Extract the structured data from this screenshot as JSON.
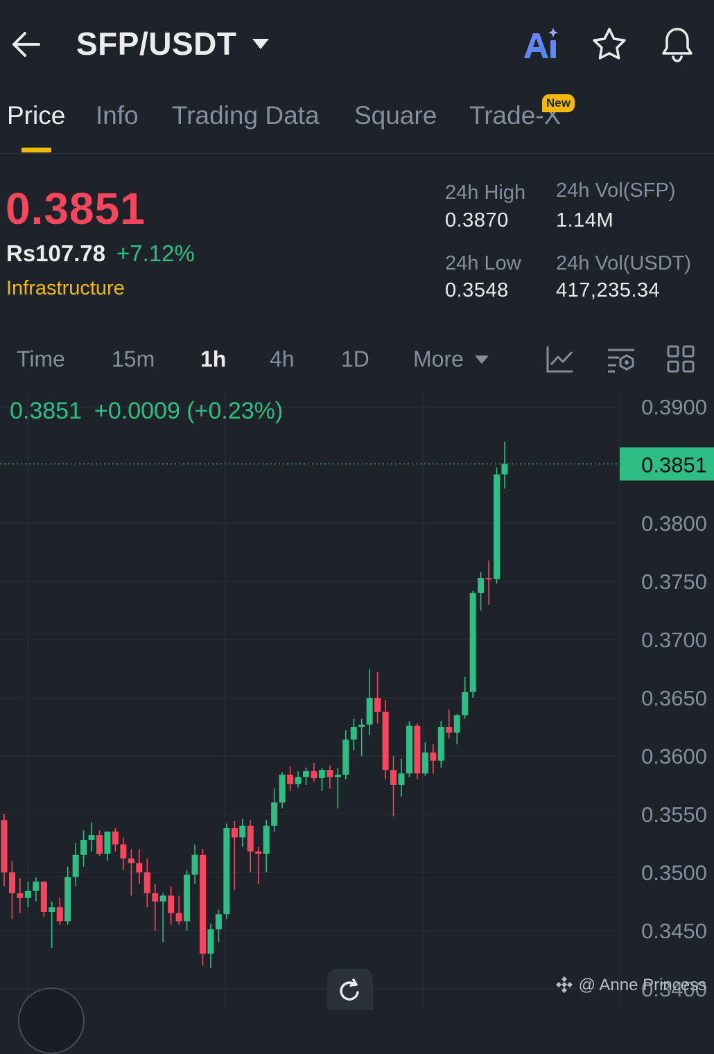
{
  "header": {
    "pair": "SFP/USDT",
    "ai_label": "Ai"
  },
  "tabs": [
    {
      "label": "Price",
      "active": true
    },
    {
      "label": "Info",
      "active": false
    },
    {
      "label": "Trading Data",
      "active": false
    },
    {
      "label": "Square",
      "active": false
    },
    {
      "label": "Trade-X",
      "active": false,
      "badge": "New"
    }
  ],
  "ticker": {
    "last_price": "0.3851",
    "fiat_price": "Rs107.78",
    "change_pct": "+7.12%",
    "sector": "Infrastructure",
    "stats": {
      "high_label": "24h High",
      "high_value": "0.3870",
      "low_label": "24h Low",
      "low_value": "0.3548",
      "vol_base_label": "24h Vol(SFP)",
      "vol_base_value": "1.14M",
      "vol_quote_label": "24h Vol(USDT)",
      "vol_quote_value": "417,235.34"
    }
  },
  "intervals": [
    {
      "label": "Time",
      "active": false
    },
    {
      "label": "15m",
      "active": false
    },
    {
      "label": "1h",
      "active": true
    },
    {
      "label": "4h",
      "active": false
    },
    {
      "label": "1D",
      "active": false
    },
    {
      "label": "More",
      "active": false
    }
  ],
  "chart_readout": {
    "close": "0.3851",
    "change": "+0.0009 (+0.23%)"
  },
  "watermark": "@ Anne Princess",
  "colors": {
    "background": "#1e2329",
    "up": "#2ebd85",
    "down": "#f6465d",
    "accent": "#f0b90b",
    "muted_text": "#848e9c"
  },
  "chart_data": {
    "type": "candlestick",
    "interval": "1h",
    "y_ticks": [
      0.39,
      0.38,
      0.375,
      0.37,
      0.365,
      0.36,
      0.355,
      0.35,
      0.345,
      0.34
    ],
    "y_tick_labels": [
      "0.3900",
      "0.3800",
      "0.3750",
      "0.3700",
      "0.3650",
      "0.3600",
      "0.3550",
      "0.3500",
      "0.3450",
      "0.3400"
    ],
    "ylim": [
      0.3385,
      0.3915
    ],
    "current_price": 0.3851,
    "current_price_label": "0.3851",
    "grid": true,
    "candles": [
      [
        0.3545,
        0.355,
        0.3488,
        0.35
      ],
      [
        0.35,
        0.351,
        0.346,
        0.3482
      ],
      [
        0.3482,
        0.3495,
        0.3465,
        0.3478
      ],
      [
        0.3478,
        0.3492,
        0.347,
        0.3484
      ],
      [
        0.3484,
        0.3496,
        0.3475,
        0.3492
      ],
      [
        0.3492,
        0.3492,
        0.3462,
        0.3466
      ],
      [
        0.3466,
        0.3475,
        0.3435,
        0.347
      ],
      [
        0.347,
        0.3478,
        0.3455,
        0.3458
      ],
      [
        0.3458,
        0.3505,
        0.3455,
        0.3496
      ],
      [
        0.3496,
        0.3525,
        0.3488,
        0.3515
      ],
      [
        0.3515,
        0.3536,
        0.3505,
        0.3528
      ],
      [
        0.3528,
        0.3543,
        0.3518,
        0.3532
      ],
      [
        0.3532,
        0.3536,
        0.3514,
        0.3516
      ],
      [
        0.3516,
        0.3535,
        0.351,
        0.3535
      ],
      [
        0.3535,
        0.3538,
        0.3518,
        0.3524
      ],
      [
        0.3524,
        0.353,
        0.3502,
        0.3512
      ],
      [
        0.3512,
        0.352,
        0.348,
        0.3508
      ],
      [
        0.3508,
        0.352,
        0.349,
        0.35
      ],
      [
        0.35,
        0.3512,
        0.347,
        0.3482
      ],
      [
        0.3482,
        0.349,
        0.345,
        0.3475
      ],
      [
        0.3475,
        0.3482,
        0.344,
        0.348
      ],
      [
        0.348,
        0.3488,
        0.3455,
        0.3465
      ],
      [
        0.3465,
        0.348,
        0.3455,
        0.3458
      ],
      [
        0.3458,
        0.3502,
        0.345,
        0.3498
      ],
      [
        0.3498,
        0.3524,
        0.349,
        0.3515
      ],
      [
        0.3515,
        0.352,
        0.342,
        0.343
      ],
      [
        0.343,
        0.3456,
        0.3418,
        0.3451
      ],
      [
        0.3451,
        0.3468,
        0.344,
        0.3464
      ],
      [
        0.3464,
        0.3542,
        0.346,
        0.3538
      ],
      [
        0.3538,
        0.3544,
        0.3485,
        0.353
      ],
      [
        0.353,
        0.3546,
        0.3522,
        0.354
      ],
      [
        0.354,
        0.3545,
        0.35,
        0.3518
      ],
      [
        0.3518,
        0.3522,
        0.349,
        0.3516
      ],
      [
        0.3516,
        0.3545,
        0.35,
        0.354
      ],
      [
        0.354,
        0.3572,
        0.3535,
        0.356
      ],
      [
        0.356,
        0.3586,
        0.3555,
        0.3584
      ],
      [
        0.3584,
        0.3591,
        0.357,
        0.3576
      ],
      [
        0.3576,
        0.3587,
        0.3573,
        0.3582
      ],
      [
        0.3582,
        0.359,
        0.3575,
        0.3587
      ],
      [
        0.3587,
        0.3594,
        0.3578,
        0.3581
      ],
      [
        0.3581,
        0.359,
        0.357,
        0.3588
      ],
      [
        0.3588,
        0.3592,
        0.3572,
        0.3582
      ],
      [
        0.3582,
        0.359,
        0.3555,
        0.3584
      ],
      [
        0.3584,
        0.3622,
        0.358,
        0.3614
      ],
      [
        0.3614,
        0.3632,
        0.3605,
        0.3625
      ],
      [
        0.3625,
        0.3632,
        0.36,
        0.3627
      ],
      [
        0.3627,
        0.3675,
        0.3618,
        0.365
      ],
      [
        0.365,
        0.3672,
        0.3628,
        0.3638
      ],
      [
        0.3638,
        0.3648,
        0.358,
        0.3588
      ],
      [
        0.3588,
        0.36,
        0.3548,
        0.3575
      ],
      [
        0.3575,
        0.3598,
        0.3565,
        0.3585
      ],
      [
        0.3585,
        0.363,
        0.3582,
        0.3626
      ],
      [
        0.3626,
        0.3628,
        0.358,
        0.3585
      ],
      [
        0.3585,
        0.3612,
        0.3583,
        0.3603
      ],
      [
        0.3603,
        0.361,
        0.3585,
        0.3596
      ],
      [
        0.3596,
        0.363,
        0.359,
        0.3625
      ],
      [
        0.3625,
        0.364,
        0.3615,
        0.362
      ],
      [
        0.362,
        0.3636,
        0.361,
        0.3635
      ],
      [
        0.3635,
        0.3668,
        0.3632,
        0.3655
      ],
      [
        0.3655,
        0.3742,
        0.365,
        0.374
      ],
      [
        0.374,
        0.3758,
        0.3725,
        0.3753
      ],
      [
        0.3753,
        0.3768,
        0.373,
        0.3752
      ],
      [
        0.3752,
        0.3848,
        0.3748,
        0.3842
      ],
      [
        0.3842,
        0.387,
        0.383,
        0.3851
      ]
    ]
  }
}
